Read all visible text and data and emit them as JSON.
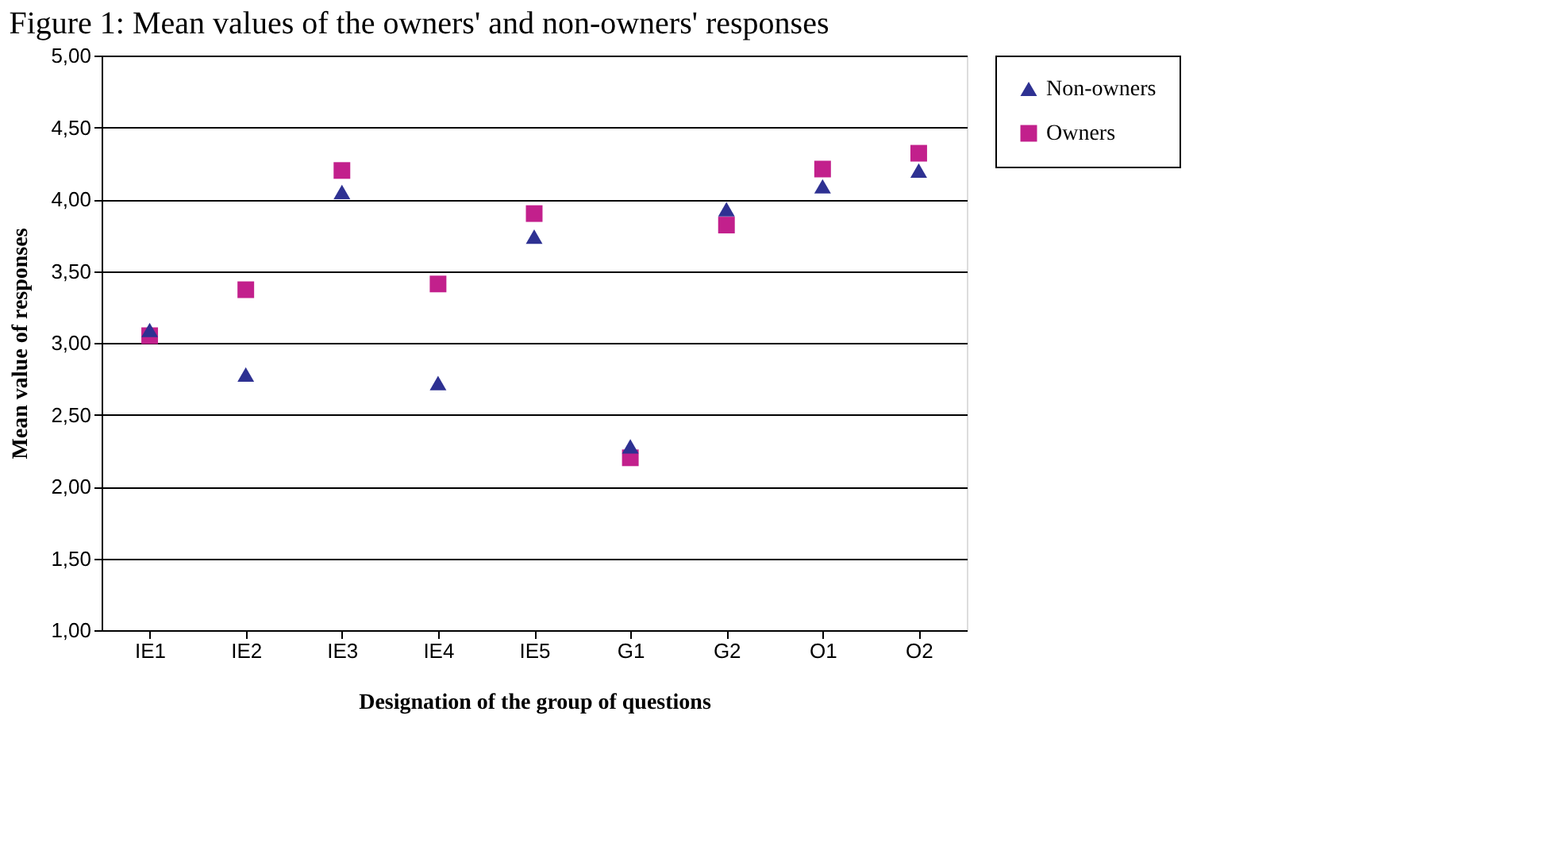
{
  "chart_data": {
    "type": "scatter",
    "title": "Figure 1: Mean values of the owners' and non-owners' responses",
    "xlabel": "Designation of the group of questions",
    "ylabel": "Mean value of responses",
    "categories": [
      "IE1",
      "IE2",
      "IE3",
      "IE4",
      "IE5",
      "G1",
      "G2",
      "O1",
      "O2"
    ],
    "series": [
      {
        "name": "Non-owners",
        "color": "#2e3192",
        "marker": "triangle",
        "values": [
          3.09,
          2.78,
          4.05,
          2.72,
          3.74,
          2.28,
          3.93,
          4.09,
          4.2
        ]
      },
      {
        "name": "Owners",
        "color": "#c2208c",
        "marker": "square",
        "values": [
          3.05,
          3.37,
          4.2,
          3.41,
          3.9,
          2.2,
          3.82,
          4.21,
          4.32
        ]
      }
    ],
    "ylim": [
      1,
      5
    ],
    "yticks": [
      {
        "value": 1,
        "label": "1,00"
      },
      {
        "value": 1.5,
        "label": "1,50"
      },
      {
        "value": 2,
        "label": "2,00"
      },
      {
        "value": 2.5,
        "label": "2,50"
      },
      {
        "value": 3,
        "label": "3,00"
      },
      {
        "value": 3.5,
        "label": "3,50"
      },
      {
        "value": 4,
        "label": "4,00"
      },
      {
        "value": 4.5,
        "label": "4,50"
      },
      {
        "value": 5,
        "label": "5,00"
      }
    ],
    "grid": "y",
    "legend": "right"
  }
}
